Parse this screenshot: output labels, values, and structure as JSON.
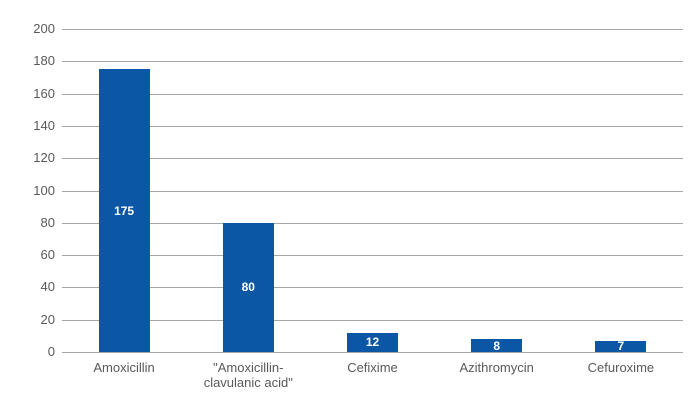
{
  "chart_data": {
    "type": "bar",
    "title": "",
    "xlabel": "",
    "ylabel": "",
    "categories": [
      "Amoxicillin",
      "\"Amoxicillin-clavulanic acid\"",
      "Cefixime",
      "Azithromycin",
      "Cefuroxime"
    ],
    "values": [
      175,
      80,
      12,
      8,
      7
    ],
    "ylim": [
      0,
      200
    ],
    "ytick_step": 20,
    "grid": true,
    "legend": false,
    "colors": {
      "bar": "#0b57a6",
      "value_label": "#ffffff",
      "axis_text": "#595959",
      "gridline": "#a6a6a6",
      "background": "#ffffff"
    }
  }
}
